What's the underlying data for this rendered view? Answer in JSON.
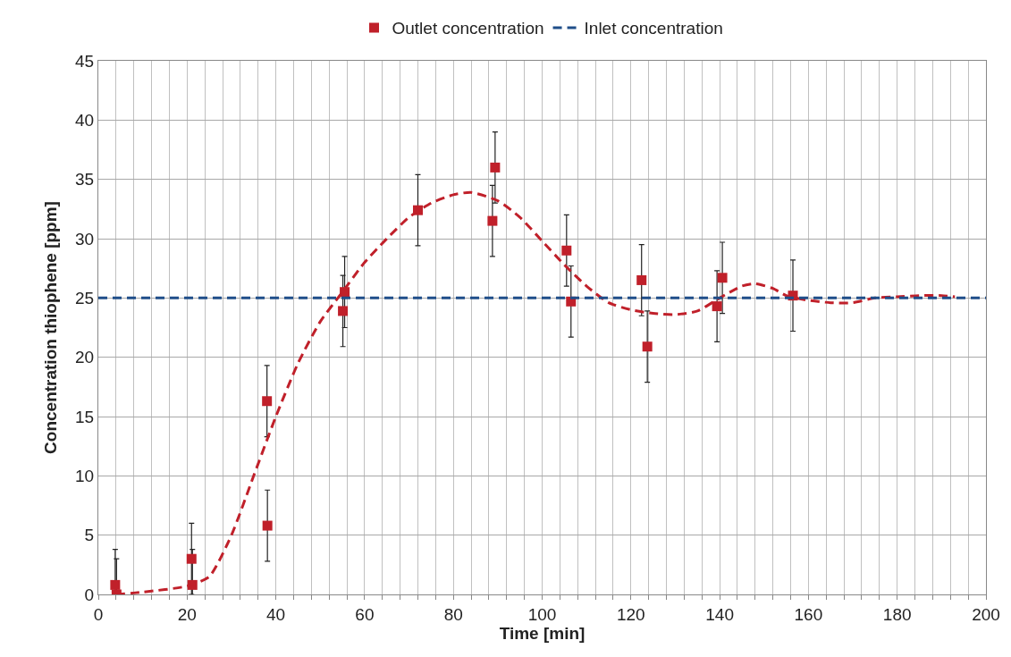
{
  "chart_data": {
    "type": "scatter",
    "xlabel": "Time [min]",
    "ylabel": "Concentration thiophene [ppm]",
    "xlim": [
      0,
      200
    ],
    "ylim": [
      0,
      45
    ],
    "xticks": [
      0,
      {
        "value": 4,
        "label": null
      },
      {
        "value": 8,
        "label": null
      },
      {
        "value": 12,
        "label": null
      },
      {
        "value": 16,
        "label": null
      },
      20,
      {
        "value": 24,
        "label": null
      },
      {
        "value": 28,
        "label": null
      },
      {
        "value": 32,
        "label": null
      },
      {
        "value": 36,
        "label": null
      },
      40,
      {
        "value": 44,
        "label": null
      },
      {
        "value": 48,
        "label": null
      },
      {
        "value": 52,
        "label": null
      },
      {
        "value": 56,
        "label": null
      },
      60,
      {
        "value": 64,
        "label": null
      },
      {
        "value": 68,
        "label": null
      },
      {
        "value": 72,
        "label": null
      },
      {
        "value": 76,
        "label": null
      },
      80,
      {
        "value": 84,
        "label": null
      },
      {
        "value": 88,
        "label": null
      },
      {
        "value": 92,
        "label": null
      },
      {
        "value": 96,
        "label": null
      },
      100,
      {
        "value": 104,
        "label": null
      },
      {
        "value": 108,
        "label": null
      },
      {
        "value": 112,
        "label": null
      },
      {
        "value": 116,
        "label": null
      },
      120,
      {
        "value": 124,
        "label": null
      },
      {
        "value": 128,
        "label": null
      },
      {
        "value": 132,
        "label": null
      },
      {
        "value": 136,
        "label": null
      },
      140,
      {
        "value": 144,
        "label": null
      },
      {
        "value": 148,
        "label": null
      },
      {
        "value": 152,
        "label": null
      },
      {
        "value": 156,
        "label": null
      },
      160,
      {
        "value": 164,
        "label": null
      },
      {
        "value": 168,
        "label": null
      },
      {
        "value": 172,
        "label": null
      },
      {
        "value": 176,
        "label": null
      },
      180,
      {
        "value": 184,
        "label": null
      },
      {
        "value": 188,
        "label": null
      },
      {
        "value": 192,
        "label": null
      },
      {
        "value": 196,
        "label": null
      },
      200
    ],
    "yticks": [
      0,
      5,
      10,
      15,
      20,
      25,
      30,
      35,
      40,
      45
    ],
    "grid": true,
    "legend": "top",
    "series": [
      {
        "name": "Outlet concentration",
        "marker": "square",
        "color": "#c0202a",
        "x": [
          3.8,
          4.1,
          21.0,
          21.2,
          38.0,
          38.1,
          55.5,
          55.1,
          72.0,
          88.8,
          89.4,
          105.5,
          106.5,
          122.4,
          123.7,
          139.4,
          140.6,
          156.5
        ],
        "values": [
          0.8,
          0.0,
          3.0,
          0.8,
          16.3,
          5.8,
          25.5,
          23.9,
          32.4,
          31.5,
          36.0,
          29.0,
          24.7,
          26.5,
          20.9,
          24.3,
          26.7,
          25.2
        ],
        "errors": [
          3,
          3,
          3,
          3,
          3,
          3,
          3,
          3,
          3,
          3,
          3,
          3,
          3,
          3,
          3,
          3,
          3,
          3
        ]
      },
      {
        "type": "line",
        "line_style": "dashed",
        "marker": "none",
        "color": "#c0202a",
        "x": [
          4,
          10,
          20,
          25,
          30,
          35,
          40,
          45,
          50,
          55,
          60,
          65,
          70,
          75,
          80,
          84,
          90,
          95,
          100,
          105,
          110,
          115,
          120,
          125,
          130,
          135,
          140,
          145,
          148,
          152,
          155,
          160,
          165,
          170,
          175,
          180,
          185,
          190,
          193
        ],
        "values": [
          0.0,
          0.2,
          0.7,
          1.5,
          5.0,
          10.0,
          15.0,
          19.5,
          23.0,
          25.5,
          28.0,
          30.0,
          31.8,
          33.0,
          33.7,
          33.9,
          33.2,
          31.8,
          29.8,
          27.8,
          26.0,
          24.6,
          24.0,
          23.7,
          23.6,
          23.9,
          25.0,
          26.0,
          26.2,
          25.8,
          25.2,
          24.8,
          24.6,
          24.6,
          25.0,
          25.1,
          25.2,
          25.2,
          25.1
        ]
      },
      {
        "name": "Inlet concentration",
        "type": "line",
        "line_style": "dashed",
        "marker": "none",
        "color": "#1f4e89",
        "x": [
          0,
          200
        ],
        "values": [
          25,
          25
        ]
      }
    ]
  }
}
